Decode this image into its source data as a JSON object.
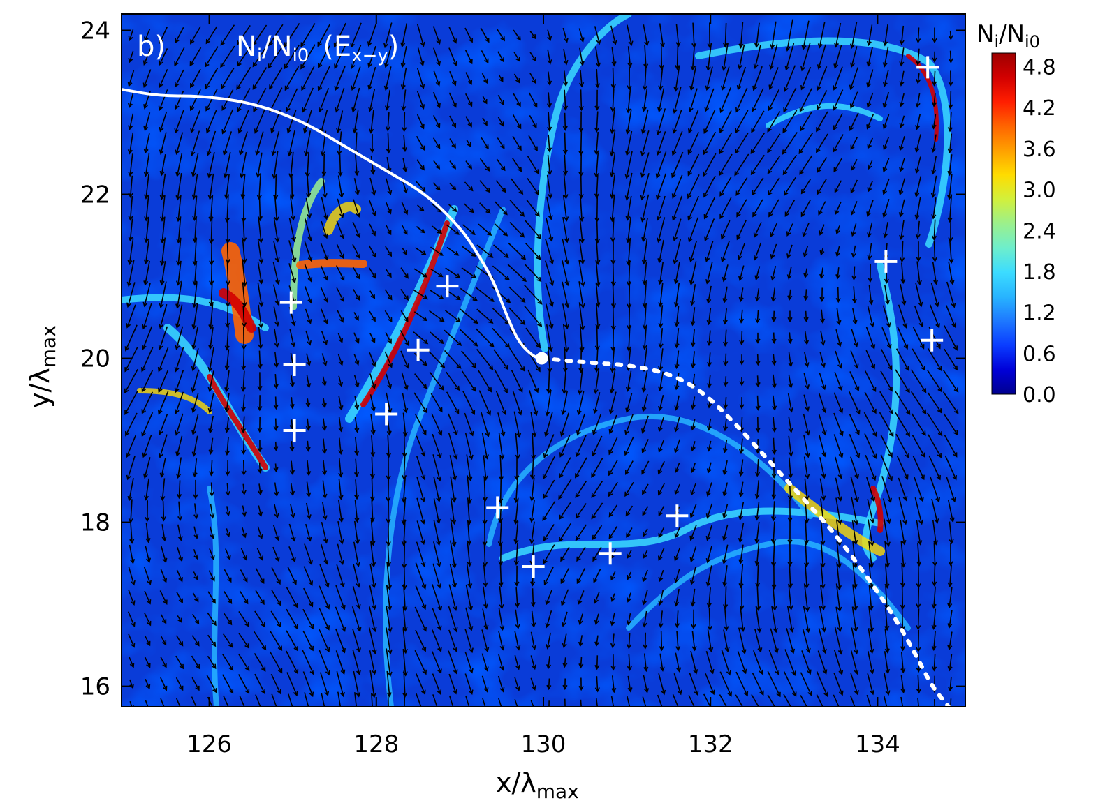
{
  "chart_data": {
    "type": "heatmap",
    "panel_label": "b)",
    "title": {
      "main": "N",
      "sub1": "i",
      "slash": "/N",
      "sub2": "i0",
      "paren_open": "(E",
      "sub3": "x−y",
      "paren_close": ")"
    },
    "xlabel": {
      "main": "x/λ",
      "sub": "max"
    },
    "ylabel": {
      "main": "y/λ",
      "sub": "max"
    },
    "xlim": [
      124.95,
      135.05
    ],
    "ylim": [
      15.75,
      24.2
    ],
    "xticks": [
      126,
      128,
      130,
      132,
      134
    ],
    "yticks": [
      16,
      18,
      20,
      22,
      24
    ],
    "colorbar": {
      "title": {
        "main": "N",
        "sub1": "i",
        "slash": "/N",
        "sub2": "i0"
      },
      "ticks": [
        "4.8",
        "4.2",
        "3.6",
        "3.0",
        "2.4",
        "1.8",
        "1.2",
        "0.6",
        "0.0"
      ],
      "range": [
        0.0,
        5.0
      ],
      "colors": [
        "#00008f",
        "#0000d8",
        "#0a3cff",
        "#1e78ff",
        "#28b4ff",
        "#3cdcff",
        "#6eeecc",
        "#9bf08c",
        "#d2f03c",
        "#ffdc00",
        "#ffa000",
        "#ff6400",
        "#ff1e00",
        "#d20000",
        "#9e0000"
      ]
    },
    "crosses": [
      {
        "x": 126.98,
        "y": 20.68
      },
      {
        "x": 127.02,
        "y": 19.92
      },
      {
        "x": 127.02,
        "y": 19.12
      },
      {
        "x": 128.12,
        "y": 19.32
      },
      {
        "x": 128.5,
        "y": 20.1
      },
      {
        "x": 128.85,
        "y": 20.88
      },
      {
        "x": 129.45,
        "y": 18.18
      },
      {
        "x": 129.88,
        "y": 17.46
      },
      {
        "x": 130.8,
        "y": 17.62
      },
      {
        "x": 131.6,
        "y": 18.08
      },
      {
        "x": 134.1,
        "y": 21.18
      },
      {
        "x": 134.65,
        "y": 20.22
      },
      {
        "x": 134.6,
        "y": 23.55
      }
    ],
    "trajectory_solid": [
      [
        124.95,
        23.28
      ],
      [
        125.4,
        23.2
      ],
      [
        125.9,
        23.2
      ],
      [
        126.5,
        23.12
      ],
      [
        127.1,
        22.9
      ],
      [
        127.6,
        22.6
      ],
      [
        128.1,
        22.3
      ],
      [
        128.6,
        22.0
      ],
      [
        129.0,
        21.6
      ],
      [
        129.2,
        21.3
      ],
      [
        129.4,
        20.95
      ],
      [
        129.55,
        20.55
      ],
      [
        129.7,
        20.2
      ],
      [
        129.88,
        20.02
      ],
      [
        129.98,
        20.0
      ]
    ],
    "trajectory_dotted": [
      [
        129.98,
        20.0
      ],
      [
        130.5,
        19.95
      ],
      [
        131.0,
        19.92
      ],
      [
        131.5,
        19.82
      ],
      [
        131.9,
        19.6
      ],
      [
        132.3,
        19.2
      ],
      [
        132.7,
        18.75
      ],
      [
        133.1,
        18.3
      ],
      [
        133.5,
        17.85
      ],
      [
        133.9,
        17.3
      ],
      [
        134.2,
        16.85
      ],
      [
        134.45,
        16.4
      ],
      [
        134.65,
        16.0
      ],
      [
        134.85,
        15.75
      ]
    ],
    "start_point": {
      "x": 129.98,
      "y": 20.0
    }
  }
}
